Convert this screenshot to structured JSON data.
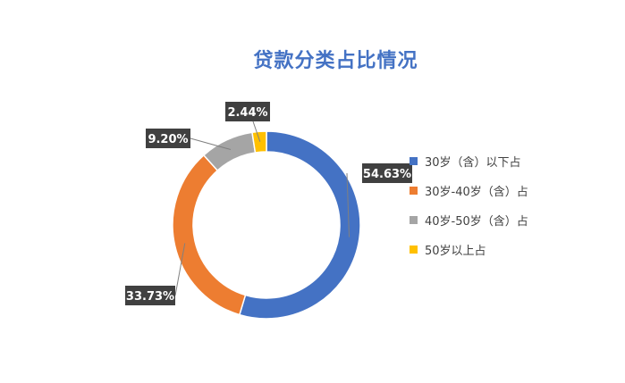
{
  "chart_data": {
    "type": "pie",
    "donut": true,
    "title": "贷款分类占比情况",
    "categories": [
      "30岁（含）以下占",
      "30岁-40岁（含）占",
      "40岁-50岁（含）占",
      "50岁以上占"
    ],
    "values": [
      54.63,
      33.73,
      9.2,
      2.44
    ],
    "data_labels": [
      "54.63%",
      "33.73%",
      "9.20%",
      "2.44%"
    ],
    "colors": [
      "#4472c4",
      "#ed7d31",
      "#a5a5a5",
      "#ffc000"
    ],
    "legend_position": "right"
  }
}
